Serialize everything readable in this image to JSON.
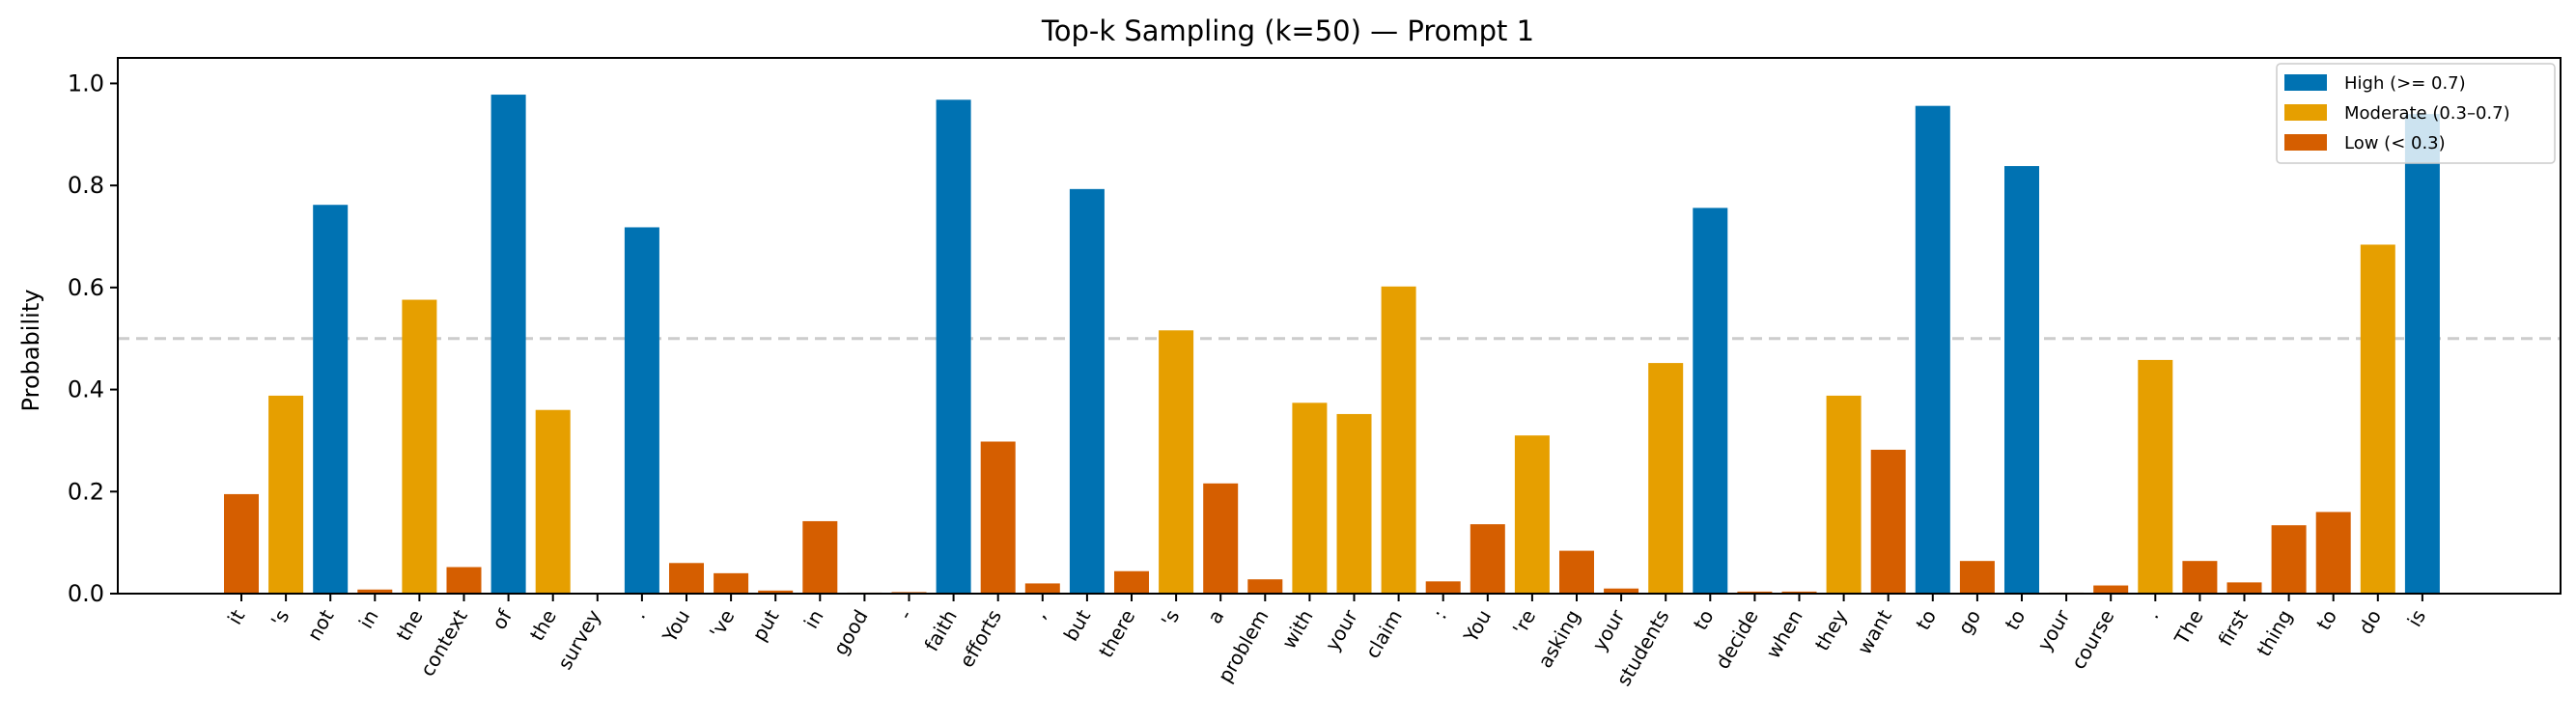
{
  "chart_data": {
    "type": "bar",
    "title": "Top-k Sampling (k=50) — Prompt 1",
    "xlabel": "",
    "ylabel": "Probability",
    "ylim": [
      0,
      1.05
    ],
    "yticks": [
      "0.0",
      "0.2",
      "0.4",
      "0.6",
      "0.8",
      "1.0"
    ],
    "ytick_values": [
      0,
      0.2,
      0.4,
      0.6,
      0.8,
      1.0
    ],
    "reference_line": 0.5,
    "legend_position": "top-right",
    "colors": {
      "high": "#0072B2",
      "moderate": "#E69F00",
      "low": "#D55E00"
    },
    "legend": [
      {
        "key": "high",
        "label": "High (>= 0.7)"
      },
      {
        "key": "moderate",
        "label": "Moderate (0.3–0.7)"
      },
      {
        "key": "low",
        "label": "Low (< 0.3)"
      }
    ],
    "categories": [
      "it",
      "'s",
      "not",
      "in",
      "the",
      "context",
      "of",
      "the",
      "survey",
      ".",
      "You",
      "'ve",
      "put",
      "in",
      "good",
      "-",
      "faith",
      "efforts",
      ",",
      "but",
      "there",
      "'s",
      "a",
      "problem",
      "with",
      "your",
      "claim",
      ":",
      "You",
      "'re",
      "asking",
      "your",
      "students",
      "to",
      "decide",
      "when",
      "they",
      "want",
      "to",
      "go",
      "to",
      "your",
      "course",
      ".",
      "The",
      "first",
      "thing",
      "to",
      "do",
      "is"
    ],
    "values": [
      0.195,
      0.388,
      0.762,
      0.008,
      0.576,
      0.052,
      0.978,
      0.36,
      0.001,
      0.718,
      0.06,
      0.04,
      0.006,
      0.142,
      0.002,
      0.003,
      0.968,
      0.298,
      0.02,
      0.793,
      0.044,
      0.516,
      0.216,
      0.028,
      0.374,
      0.352,
      0.602,
      0.024,
      0.136,
      0.31,
      0.084,
      0.01,
      0.452,
      0.756,
      0.004,
      0.004,
      0.388,
      0.282,
      0.956,
      0.064,
      0.838,
      0.002,
      0.016,
      0.458,
      0.064,
      0.022,
      0.134,
      0.16,
      0.684,
      0.94
    ]
  }
}
